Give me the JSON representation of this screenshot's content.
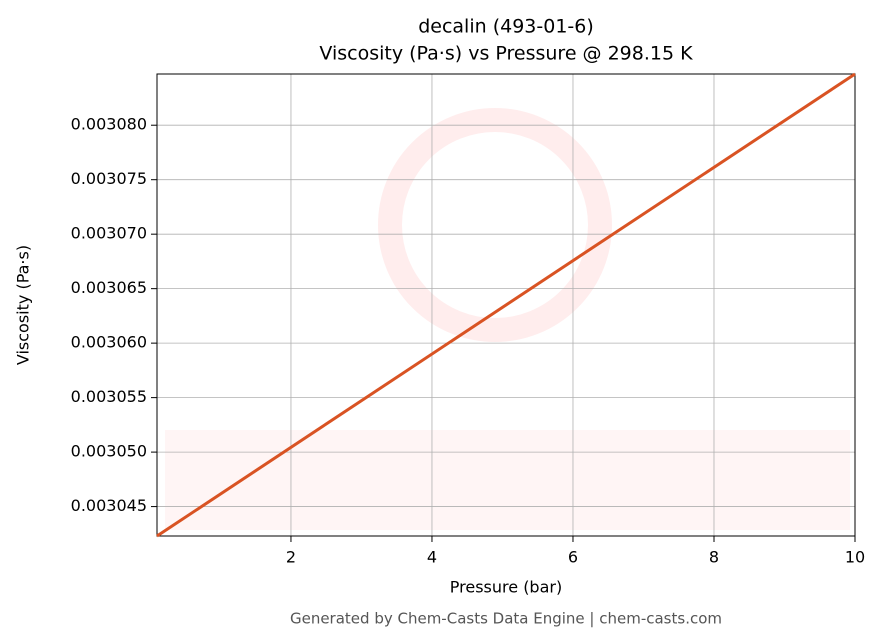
{
  "chart_data": {
    "type": "line",
    "title": "decalin (493-01-6)",
    "subtitle": "Viscosity (Pa·s) vs Pressure @ 298.15 K",
    "x_label": "Pressure (bar)",
    "y_label": "Viscosity (Pa·s)",
    "footer": "Generated by Chem-Casts Data Engine | chem-casts.com",
    "x": [
      0.1,
      10
    ],
    "series": [
      {
        "name": "decalin",
        "color": "#d95323",
        "values": [
          0.0030423,
          0.0030847
        ]
      }
    ],
    "xlim": [
      0.1,
      10
    ],
    "ylim": [
      0.0030423,
      0.0030847
    ],
    "xticks": [
      2,
      4,
      6,
      8,
      10
    ],
    "yticks": [
      {
        "value": 0.003045,
        "label": "0.003045"
      },
      {
        "value": 0.00305,
        "label": "0.003050"
      },
      {
        "value": 0.003055,
        "label": "0.003055"
      },
      {
        "value": 0.00306,
        "label": "0.003060"
      },
      {
        "value": 0.003065,
        "label": "0.003065"
      },
      {
        "value": 0.00307,
        "label": "0.003070"
      },
      {
        "value": 0.003075,
        "label": "0.003075"
      },
      {
        "value": 0.00308,
        "label": "0.003080"
      }
    ],
    "grid": true
  }
}
